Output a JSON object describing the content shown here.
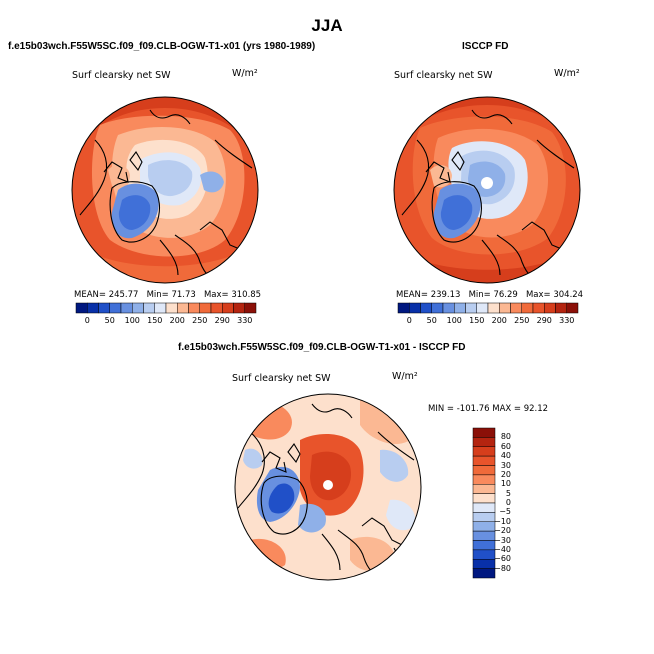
{
  "page_title": "JJA",
  "colors": {
    "warm_1": "#fde0cc",
    "warm_2": "#fbb893",
    "warm_3": "#f98a5d",
    "warm_4": "#f06a3a",
    "warm_5": "#e8542b",
    "warm_6": "#d63e1c",
    "warm_7": "#b42410",
    "warm_8": "#8b1008",
    "cool_1": "#dfe8f8",
    "cool_2": "#b8cdf0",
    "cool_3": "#8fb0e8",
    "cool_4": "#6890e0",
    "cool_5": "#4070d8",
    "cool_6": "#2050c8",
    "cool_7": "#0830a8",
    "cool_8": "#001880",
    "coast": "#000000"
  },
  "chart_data": [
    {
      "type": "heatmap",
      "id": "model",
      "case_title": "f.e15b03wch.F55W5SC.f09_f09.CLB-OGW-T1-x01 (yrs 1980-1989)",
      "variable": "Surf clearsky net SW",
      "units": "W/m²",
      "projection": "north polar stereographic",
      "stats": {
        "mean_label": "MEAN=",
        "mean": "245.77",
        "min_label": "Min=",
        "min": "71.73",
        "max_label": "Max=",
        "max": "310.85"
      },
      "colorbar": {
        "orientation": "horizontal",
        "levels": [
          0,
          50,
          100,
          150,
          200,
          250,
          290,
          330
        ]
      }
    },
    {
      "type": "heatmap",
      "id": "obs",
      "case_title": "ISCCP FD",
      "variable": "Surf clearsky net SW",
      "units": "W/m²",
      "projection": "north polar stereographic",
      "stats": {
        "mean_label": "MEAN=",
        "mean": "239.13",
        "min_label": "Min=",
        "min": "76.29",
        "max_label": "Max=",
        "max": "304.24"
      },
      "colorbar": {
        "orientation": "horizontal",
        "levels": [
          0,
          50,
          100,
          150,
          200,
          250,
          290,
          330
        ]
      }
    },
    {
      "type": "heatmap",
      "id": "diff",
      "case_title": "f.e15b03wch.F55W5SC.f09_f09.CLB-OGW-T1-x01 - ISCCP FD",
      "variable": "Surf clearsky net SW",
      "units": "W/m²",
      "projection": "north polar stereographic",
      "minmax_text": "MIN = -101.76 MAX =  92.12",
      "colorbar": {
        "orientation": "vertical",
        "levels": [
          "80",
          "60",
          "40",
          "30",
          "20",
          "10",
          "5",
          "0",
          "−5",
          "−10",
          "−20",
          "−30",
          "−40",
          "−60",
          "−80"
        ]
      }
    }
  ]
}
